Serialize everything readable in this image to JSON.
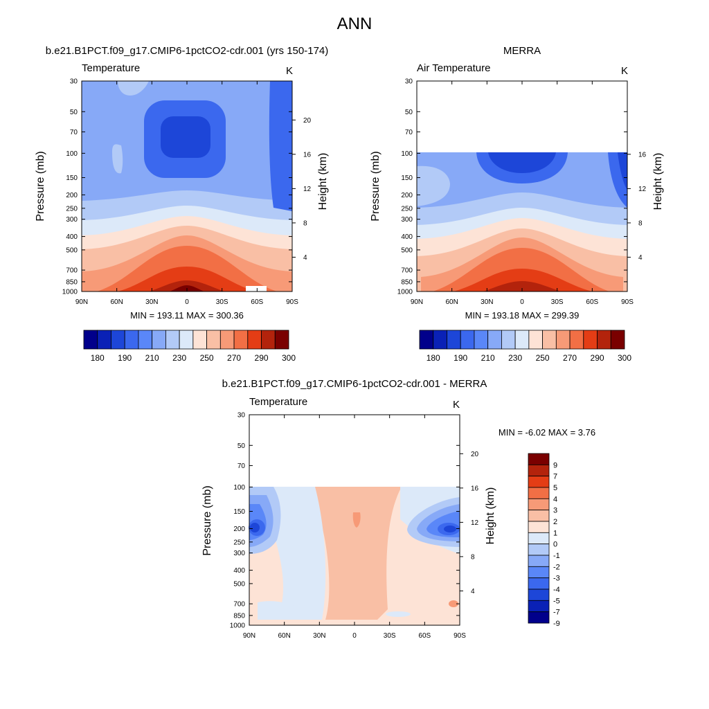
{
  "figure": {
    "title": "ANN"
  },
  "chart_data": [
    {
      "type": "heatmap",
      "id": "model",
      "case_title": "b.e21.B1PCT.f09_g17.CMIP6-1pctCO2-cdr.001 (yrs 150-174)",
      "left_label": "Temperature",
      "units": "K",
      "ylabel": "Pressure (mb)",
      "right_label": "Height (km)",
      "x_ticks": [
        "90N",
        "60N",
        "30N",
        "0",
        "30S",
        "60S",
        "90S"
      ],
      "y_ticks": [
        "30",
        "50",
        "70",
        "100",
        "150",
        "200",
        "250",
        "300",
        "400",
        "500",
        "700",
        "850",
        "1000"
      ],
      "height_ticks": [
        "4",
        "8",
        "12",
        "16",
        "20"
      ],
      "stats": "MIN = 193.11   MAX = 300.36",
      "min": 193.11,
      "max": 300.36,
      "levels": [
        180,
        185,
        190,
        200,
        210,
        220,
        230,
        240,
        250,
        260,
        270,
        280,
        290,
        295,
        300
      ],
      "colorbar_labels": [
        "180",
        "190",
        "210",
        "230",
        "250",
        "270",
        "290",
        "300"
      ],
      "data_top_pressure": 30
    },
    {
      "type": "heatmap",
      "id": "obs",
      "case_title": "MERRA",
      "left_label": "Air Temperature",
      "units": "K",
      "ylabel": "Pressure (mb)",
      "right_label": "Height (km)",
      "x_ticks": [
        "90N",
        "60N",
        "30N",
        "0",
        "30S",
        "60S",
        "90S"
      ],
      "y_ticks": [
        "30",
        "50",
        "70",
        "100",
        "150",
        "200",
        "250",
        "300",
        "400",
        "500",
        "700",
        "850",
        "1000"
      ],
      "height_ticks": [
        "4",
        "8",
        "12",
        "16"
      ],
      "stats": "MIN = 193.18   MAX = 299.39",
      "min": 193.18,
      "max": 299.39,
      "levels": [
        180,
        185,
        190,
        200,
        210,
        220,
        230,
        240,
        250,
        260,
        270,
        280,
        290,
        295,
        300
      ],
      "colorbar_labels": [
        "180",
        "190",
        "210",
        "230",
        "250",
        "270",
        "290",
        "300"
      ],
      "data_top_pressure": 100
    },
    {
      "type": "heatmap",
      "id": "diff",
      "case_title": "b.e21.B1PCT.f09_g17.CMIP6-1pctCO2-cdr.001 - MERRA",
      "left_label": "Temperature",
      "units": "K",
      "ylabel": "Pressure (mb)",
      "right_label": "Height (km)",
      "x_ticks": [
        "90N",
        "60N",
        "30N",
        "0",
        "30S",
        "60S",
        "90S"
      ],
      "y_ticks": [
        "30",
        "50",
        "70",
        "100",
        "150",
        "200",
        "250",
        "300",
        "400",
        "500",
        "700",
        "850",
        "1000"
      ],
      "height_ticks": [
        "4",
        "8",
        "12",
        "16",
        "20"
      ],
      "stats": "MIN =  -6.02  MAX =   3.76",
      "min": -6.02,
      "max": 3.76,
      "levels": [
        -9,
        -7,
        -5,
        -4,
        -3,
        -2,
        -1,
        0,
        1,
        2,
        3,
        4,
        5,
        7,
        9
      ],
      "colorbar_labels": [
        "9",
        "7",
        "5",
        "4",
        "3",
        "2",
        "1",
        "0",
        "-1",
        "-2",
        "-3",
        "-4",
        "-5",
        "-7",
        "-9"
      ],
      "data_top_pressure": 100
    }
  ],
  "palette": [
    "#01008b",
    "#0a21b6",
    "#1d46d8",
    "#3b68ee",
    "#5a87f8",
    "#87a9f7",
    "#b2caf7",
    "#dce9f9",
    "#fde3d6",
    "#f9bfa5",
    "#f79a77",
    "#f26f45",
    "#e43d15",
    "#b3230c",
    "#7a0000"
  ]
}
